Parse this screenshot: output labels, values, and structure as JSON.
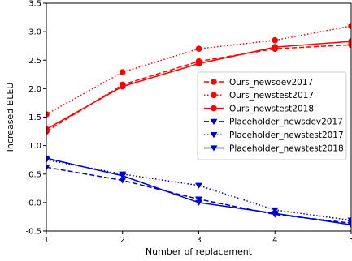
{
  "chart_data": {
    "type": "line",
    "title": "",
    "xlabel": "Number of replacement",
    "ylabel": "Increased BLEU",
    "x": [
      1,
      2,
      3,
      4,
      5
    ],
    "xticks": [
      "1",
      "2",
      "3",
      "4",
      "5"
    ],
    "yticks": [
      "-0.5",
      "0.0",
      "0.5",
      "1.0",
      "1.5",
      "2.0",
      "2.5",
      "3.0",
      "3.5"
    ],
    "xlim": [
      1,
      5
    ],
    "ylim": [
      -0.5,
      3.5
    ],
    "grid": false,
    "legend_position": "center-right",
    "series": [
      {
        "name": "Ours_newsdev2017",
        "color": "#ff0000",
        "linestyle": "dashed",
        "marker": "circle",
        "values": [
          1.25,
          2.07,
          2.48,
          2.7,
          2.77
        ]
      },
      {
        "name": "Ours_newstest2017",
        "color": "#ff0000",
        "linestyle": "dotted",
        "marker": "circle",
        "values": [
          1.55,
          2.29,
          2.7,
          2.85,
          3.1
        ]
      },
      {
        "name": "Ours_newstest2018",
        "color": "#ff0000",
        "linestyle": "solid",
        "marker": "circle",
        "values": [
          1.29,
          2.04,
          2.44,
          2.73,
          2.83
        ]
      },
      {
        "name": "Placeholder_newsdev2017",
        "color": "#0000cc",
        "linestyle": "dashed",
        "marker": "triangle-down",
        "values": [
          0.62,
          0.39,
          0.06,
          -0.21,
          -0.36
        ]
      },
      {
        "name": "Placeholder_newstest2017",
        "color": "#0000cc",
        "linestyle": "dotted",
        "marker": "triangle-down",
        "values": [
          0.75,
          0.5,
          0.3,
          -0.13,
          -0.31
        ]
      },
      {
        "name": "Placeholder_newstest2018",
        "color": "#0000cc",
        "linestyle": "solid",
        "marker": "triangle-down",
        "values": [
          0.78,
          0.47,
          0.0,
          -0.19,
          -0.39
        ]
      }
    ]
  }
}
